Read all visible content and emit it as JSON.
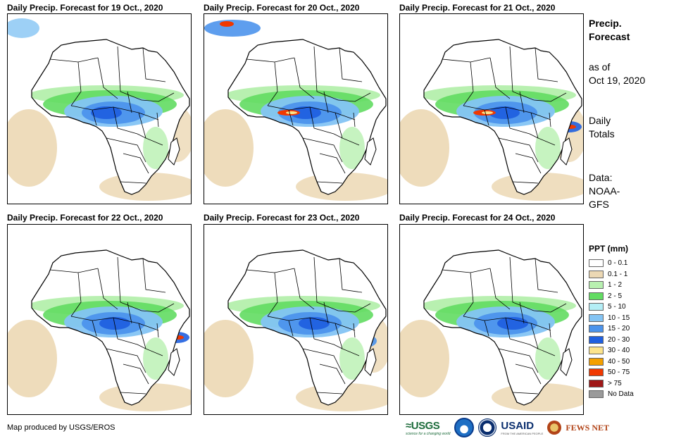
{
  "panels": [
    {
      "title": "Daily Precip. Forecast for 19 Oct., 2020"
    },
    {
      "title": "Daily Precip. Forecast for 20 Oct., 2020"
    },
    {
      "title": "Daily Precip. Forecast for 21 Oct., 2020"
    },
    {
      "title": "Daily Precip. Forecast for 22 Oct., 2020"
    },
    {
      "title": "Daily Precip. Forecast for 23 Oct., 2020"
    },
    {
      "title": "Daily Precip. Forecast for 24 Oct., 2020"
    }
  ],
  "sidebar": {
    "title_line1": "Precip.",
    "title_line2": "Forecast",
    "asof_line1": "as of",
    "asof_line2": "Oct 19, 2020",
    "totals_line1": "Daily",
    "totals_line2": "Totals",
    "data_line1": "Data:",
    "data_line2": "NOAA-",
    "data_line3": "GFS"
  },
  "legend": {
    "title": "PPT (mm)",
    "items": [
      {
        "label": "0 - 0.1",
        "color": "#ffffff"
      },
      {
        "label": "0.1 - 1",
        "color": "#ecd8b4"
      },
      {
        "label": "1 - 2",
        "color": "#b8f0b0"
      },
      {
        "label": "2 - 5",
        "color": "#62dc62"
      },
      {
        "label": "5 - 10",
        "color": "#b4eef6"
      },
      {
        "label": "10 - 15",
        "color": "#84c4f4"
      },
      {
        "label": "15 - 20",
        "color": "#4c94ec"
      },
      {
        "label": "20 - 30",
        "color": "#2060e0"
      },
      {
        "label": "30 - 40",
        "color": "#fce48c"
      },
      {
        "label": "40 - 50",
        "color": "#f4a000"
      },
      {
        "label": "50 - 75",
        "color": "#f03800"
      },
      {
        "label": "> 75",
        "color": "#a01818"
      },
      {
        "label": "No Data",
        "color": "#9a9a9a"
      }
    ]
  },
  "footer": {
    "credit": "Map produced by USGS/EROS",
    "logo_usgs": "≈USGS",
    "logo_usgs_tagline": "science for a changing world",
    "logo_usaid": "USAID",
    "logo_usaid_tagline": "FROM THE AMERICAN PEOPLE",
    "logo_fews": "FEWS NET"
  }
}
